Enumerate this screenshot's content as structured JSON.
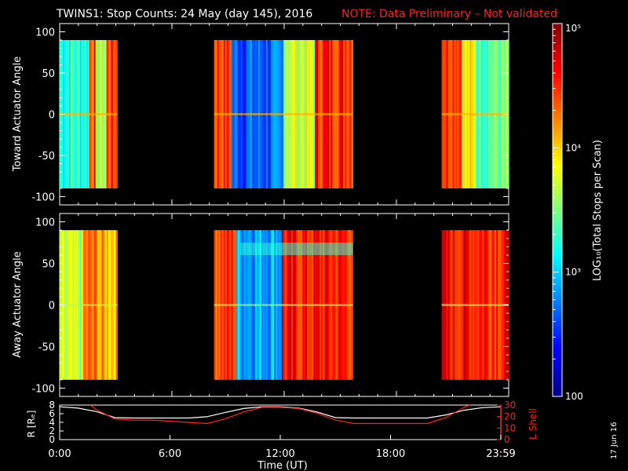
{
  "header": {
    "title": "TWINS1: Stop Counts: 24 May (day 145), 2016",
    "note": "NOTE: Data Preliminary – Not validated",
    "note_color": "#ff2020"
  },
  "side_date": "17 Jun 16",
  "colorbar": {
    "label": "LOG₁₀(Total Stops per Scan)",
    "ticks": [
      "100",
      "10³",
      "10⁴",
      "10⁵"
    ]
  },
  "chart_data": [
    {
      "type": "heatmap",
      "title": "",
      "ylabel": "Toward Actuator Angle",
      "ylim": [
        -110,
        110
      ],
      "yticks": [
        "100",
        "50",
        "0",
        "-50",
        "-100"
      ],
      "angle_range": [
        -90,
        90
      ],
      "scale": "log10",
      "value_range": [
        2,
        5
      ],
      "xlim_hours": [
        0,
        24
      ],
      "segments": [
        {
          "start": "0:00",
          "end": "3:05",
          "base": 3.2,
          "detail": "cyan/green with orange bands near 1:30-2:00 and 2:30-3:05"
        },
        {
          "start": "8:15",
          "end": "15:40",
          "base": 3.0,
          "detail": "orange at 8:15-9:00, blue 9:30-12:00, yellow/green 12:00-14:00, orange 14:30-15:40"
        },
        {
          "start": "20:25",
          "end": "24:00",
          "base": 3.4,
          "detail": "orange at 20:25-21:30 fading to green/cyan"
        }
      ]
    },
    {
      "type": "heatmap",
      "title": "",
      "ylabel": "Away Actuator Angle",
      "ylim": [
        -110,
        110
      ],
      "yticks": [
        "100",
        "50",
        "0",
        "-50",
        "-100"
      ],
      "angle_range": [
        -90,
        90
      ],
      "scale": "log10",
      "value_range": [
        2,
        5
      ],
      "xlim_hours": [
        0,
        24
      ],
      "segments": [
        {
          "start": "0:00",
          "end": "3:05",
          "base": 3.6,
          "detail": "green/yellow with orange bands 1:30-3:05"
        },
        {
          "start": "8:15",
          "end": "15:40",
          "base": 3.3,
          "detail": "orange 8:15-9:30, blue 9:30-12:00, orange/red 12:00-15:40, cyan band near +70"
        },
        {
          "start": "20:25",
          "end": "24:00",
          "base": 4.4,
          "detail": "orange/red throughout"
        }
      ]
    },
    {
      "type": "line",
      "title": "",
      "ylabel": "R [Rₑ]",
      "y2label": "L Shell",
      "xlabel": "Time (UT)",
      "xticks": [
        "0:00",
        "6:00",
        "12:00",
        "18:00",
        "23:59"
      ],
      "ylim": [
        0,
        8
      ],
      "yticks": [
        "8",
        "6",
        "4",
        "2",
        "0"
      ],
      "y2lim": [
        0,
        30
      ],
      "y2ticks": [
        "30",
        "20",
        "10",
        "0"
      ],
      "series": [
        {
          "color": "#ffffff",
          "axis": "left",
          "x": [
            0,
            1,
            2,
            3,
            4,
            5,
            6,
            7,
            8,
            9,
            10,
            11,
            12,
            13,
            14,
            15,
            16,
            17,
            18,
            19,
            20,
            21,
            22,
            23,
            24
          ],
          "y": [
            7.6,
            7.3,
            6.5,
            5.1,
            5.0,
            5.0,
            5.0,
            5.0,
            5.3,
            6.3,
            7.2,
            7.6,
            7.6,
            7.3,
            6.4,
            5.1,
            5.0,
            5.0,
            5.0,
            5.0,
            5.0,
            5.7,
            6.8,
            7.4,
            7.6
          ]
        },
        {
          "color": "#ff2020",
          "axis": "right",
          "x": [
            0,
            1,
            1.5,
            2,
            3,
            4,
            5,
            6,
            7,
            8,
            9,
            10,
            11,
            12,
            13,
            14,
            15,
            16,
            17,
            18,
            19,
            20,
            21,
            22,
            23,
            24
          ],
          "y": [
            35,
            35,
            32,
            26,
            18,
            17,
            17,
            16,
            15,
            14,
            18,
            24,
            28,
            28,
            27,
            23,
            17,
            14,
            14,
            14,
            14,
            14,
            19,
            28,
            35,
            35
          ]
        }
      ]
    }
  ]
}
